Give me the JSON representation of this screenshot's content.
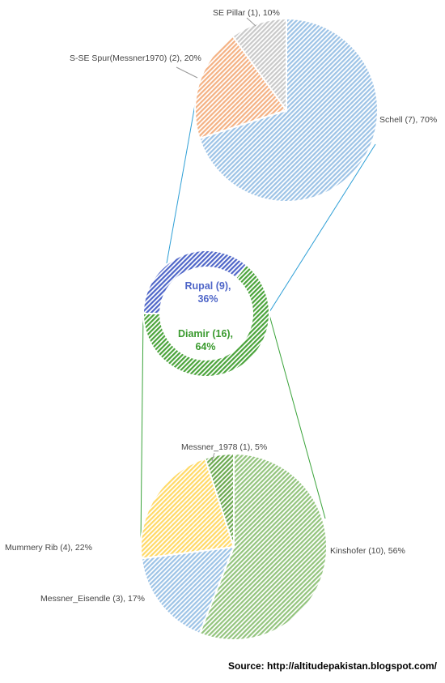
{
  "source_text": "Source: http://altitudepakistan.blogspot.com/",
  "chart_data": [
    {
      "type": "pie",
      "slices": [
        {
          "name": "Schell",
          "count": 7,
          "value": 70,
          "label": "Schell (7), 70%",
          "color": "#9dc3e6"
        },
        {
          "name": "S-SE Spur(Messner1970)",
          "count": 2,
          "value": 20,
          "label": "S-SE Spur(Messner1970) (2),  20%",
          "color": "#f4b183"
        },
        {
          "name": "SE Pillar",
          "count": 1,
          "value": 10,
          "label": "SE Pillar (1), 10%",
          "color": "#c9c9c9"
        }
      ]
    },
    {
      "type": "pie",
      "style": "doughnut",
      "slices": [
        {
          "name": "Rupal",
          "count": 9,
          "value": 36,
          "label_line1": "Rupal (9),",
          "label_line2": "36%",
          "color": "#4f66c8"
        },
        {
          "name": "Diamir",
          "count": 16,
          "value": 64,
          "label_line1": "Diamir (16),",
          "label_line2": "64%",
          "color": "#4aa33a"
        }
      ]
    },
    {
      "type": "pie",
      "slices": [
        {
          "name": "Kinshofer",
          "count": 10,
          "value": 56,
          "label": "Kinshofer (10),  56%",
          "color": "#93c47d"
        },
        {
          "name": "Messner_Eisendle",
          "count": 3,
          "value": 17,
          "label": "Messner_Eisendle (3), 17%",
          "color": "#9dc3e6"
        },
        {
          "name": "Mummery Rib",
          "count": 4,
          "value": 22,
          "label": "Mummery Rib (4), 22%",
          "color": "#ffd966"
        },
        {
          "name": "Messner_1978",
          "count": 1,
          "value": 5,
          "label": "Messner_1978 (1), 5%",
          "color": "#6aa84f"
        }
      ]
    }
  ]
}
